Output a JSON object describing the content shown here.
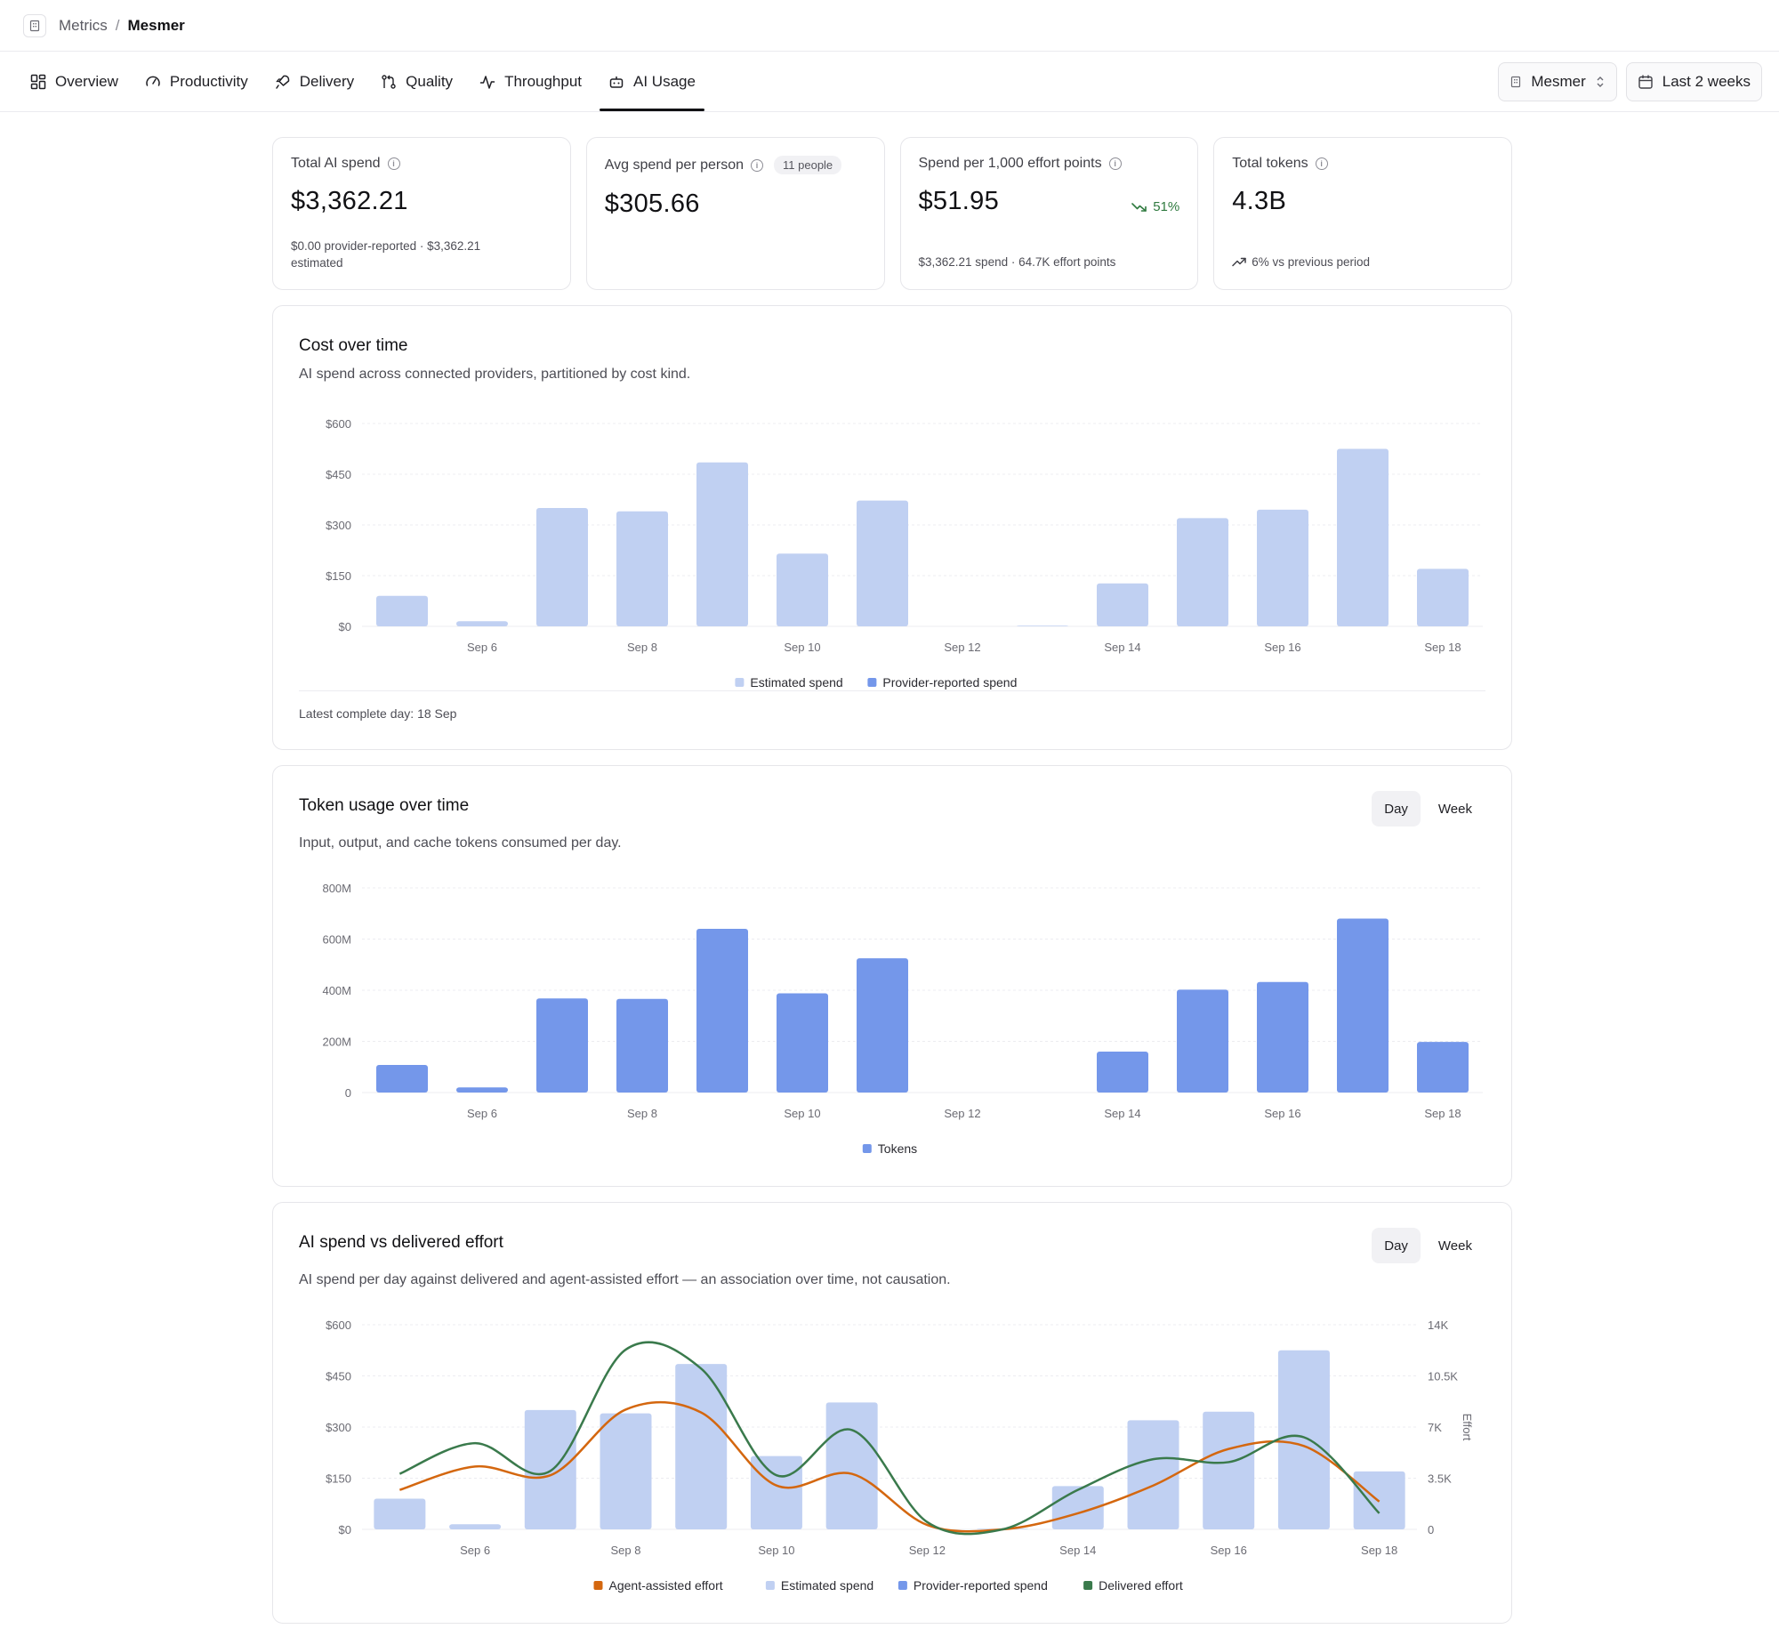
{
  "breadcrumb": {
    "root": "Metrics",
    "separator": "/",
    "current": "Mesmer"
  },
  "nav": {
    "tabs": [
      {
        "label": "Overview",
        "icon": "grid-icon"
      },
      {
        "label": "Productivity",
        "icon": "gauge-icon"
      },
      {
        "label": "Delivery",
        "icon": "rocket-icon"
      },
      {
        "label": "Quality",
        "icon": "git-compare-icon"
      },
      {
        "label": "Throughput",
        "icon": "pulse-icon"
      },
      {
        "label": "AI Usage",
        "icon": "robot-icon",
        "active": true
      }
    ],
    "org_select": "Mesmer",
    "date_range": "Last 2 weeks"
  },
  "kpis": {
    "total_spend": {
      "label": "Total AI spend",
      "value": "$3,362.21",
      "sub_line1": "$0.00 provider-reported · $3,362.21",
      "sub_line2": "estimated"
    },
    "avg_spend": {
      "label": "Avg spend per person",
      "badge": "11 people",
      "value": "$305.66"
    },
    "per_effort": {
      "label": "Spend per 1,000 effort points",
      "value": "$51.95",
      "delta": "51%",
      "sub": "$3,362.21 spend · 64.7K effort points"
    },
    "tokens": {
      "label": "Total tokens",
      "value": "4.3B",
      "sub": "6% vs previous period"
    }
  },
  "cost_card": {
    "title": "Cost over time",
    "description": "AI spend across connected providers, partitioned by cost kind.",
    "footer": "Latest complete day: 18 Sep"
  },
  "token_card": {
    "title": "Token usage over time",
    "description": "Input, output, and cache tokens consumed per day.",
    "toggle": [
      "Day",
      "Week"
    ]
  },
  "effort_card": {
    "title": "AI spend vs delivered effort",
    "description": "AI spend per day against delivered and agent-assisted effort — an association over time, not causation.",
    "toggle": [
      "Day",
      "Week"
    ]
  },
  "colors": {
    "estimated": "#c0d0f2",
    "provider": "#7497ea",
    "agent": "#d4670f",
    "delivered": "#3a7a4c",
    "grid": "#ececf0",
    "axis_text": "#6b6b73"
  },
  "chart_data": [
    {
      "type": "bar",
      "title": "Cost over time",
      "categories": [
        "Sep 5",
        "Sep 6",
        "Sep 7",
        "Sep 8",
        "Sep 9",
        "Sep 10",
        "Sep 11",
        "Sep 12",
        "Sep 13",
        "Sep 14",
        "Sep 15",
        "Sep 16",
        "Sep 17",
        "Sep 18"
      ],
      "tick_labels": [
        "Sep 6",
        "Sep 8",
        "Sep 10",
        "Sep 12",
        "Sep 14",
        "Sep 16",
        "Sep 18"
      ],
      "y_ticks": [
        "$0",
        "$150",
        "$300",
        "$450",
        "$600"
      ],
      "ylim": [
        0,
        600
      ],
      "series": [
        {
          "name": "Estimated spend",
          "values": [
            90,
            15,
            350,
            340,
            485,
            215,
            372,
            0,
            2,
            127,
            320,
            345,
            525,
            170
          ]
        },
        {
          "name": "Provider-reported spend",
          "values": [
            0,
            0,
            0,
            0,
            0,
            0,
            0,
            0,
            0,
            0,
            0,
            0,
            0,
            0
          ]
        }
      ],
      "legend": "bottom-center",
      "grid": true
    },
    {
      "type": "bar",
      "title": "Token usage over time",
      "categories": [
        "Sep 5",
        "Sep 6",
        "Sep 7",
        "Sep 8",
        "Sep 9",
        "Sep 10",
        "Sep 11",
        "Sep 12",
        "Sep 13",
        "Sep 14",
        "Sep 15",
        "Sep 16",
        "Sep 17",
        "Sep 18"
      ],
      "tick_labels": [
        "Sep 6",
        "Sep 8",
        "Sep 10",
        "Sep 12",
        "Sep 14",
        "Sep 16",
        "Sep 18"
      ],
      "y_ticks": [
        "0",
        "200M",
        "400M",
        "600M",
        "800M"
      ],
      "ylim": [
        0,
        800
      ],
      "series": [
        {
          "name": "Tokens",
          "values": [
            108,
            20,
            368,
            366,
            640,
            388,
            525,
            0,
            0,
            160,
            402,
            432,
            680,
            198
          ]
        }
      ],
      "legend": "bottom-center",
      "grid": true
    },
    {
      "type": "bar",
      "title": "AI spend vs delivered effort",
      "categories": [
        "Sep 5",
        "Sep 6",
        "Sep 7",
        "Sep 8",
        "Sep 9",
        "Sep 10",
        "Sep 11",
        "Sep 12",
        "Sep 13",
        "Sep 14",
        "Sep 15",
        "Sep 16",
        "Sep 17",
        "Sep 18"
      ],
      "tick_labels": [
        "Sep 6",
        "Sep 8",
        "Sep 10",
        "Sep 12",
        "Sep 14",
        "Sep 16",
        "Sep 18"
      ],
      "y_ticks": [
        "$0",
        "$150",
        "$300",
        "$450",
        "$600"
      ],
      "y2_ticks": [
        "0",
        "3.5K",
        "7K",
        "10.5K",
        "14K"
      ],
      "y2label": "Effort",
      "ylim": [
        0,
        600
      ],
      "y2lim": [
        0,
        14000
      ],
      "series": [
        {
          "name": "Estimated spend",
          "kind": "bar",
          "values": [
            90,
            15,
            350,
            340,
            485,
            215,
            372,
            0,
            2,
            127,
            320,
            345,
            525,
            170
          ]
        },
        {
          "name": "Provider-reported spend",
          "kind": "bar",
          "values": [
            0,
            0,
            0,
            0,
            0,
            0,
            0,
            0,
            0,
            0,
            0,
            0,
            0,
            0
          ]
        },
        {
          "name": "Agent-assisted effort",
          "kind": "line",
          "values": [
            2700,
            4300,
            3700,
            8200,
            8000,
            3000,
            3800,
            300,
            0,
            1100,
            3000,
            5500,
            5700,
            1900
          ]
        },
        {
          "name": "Delivered effort",
          "kind": "line",
          "values": [
            3800,
            5900,
            4000,
            12300,
            11000,
            3700,
            6800,
            500,
            0,
            2700,
            4800,
            4600,
            6300,
            1100
          ]
        }
      ],
      "legend_order": [
        "Agent-assisted effort",
        "Estimated spend",
        "Provider-reported spend",
        "Delivered effort"
      ],
      "legend": "bottom-center",
      "grid": true
    }
  ]
}
